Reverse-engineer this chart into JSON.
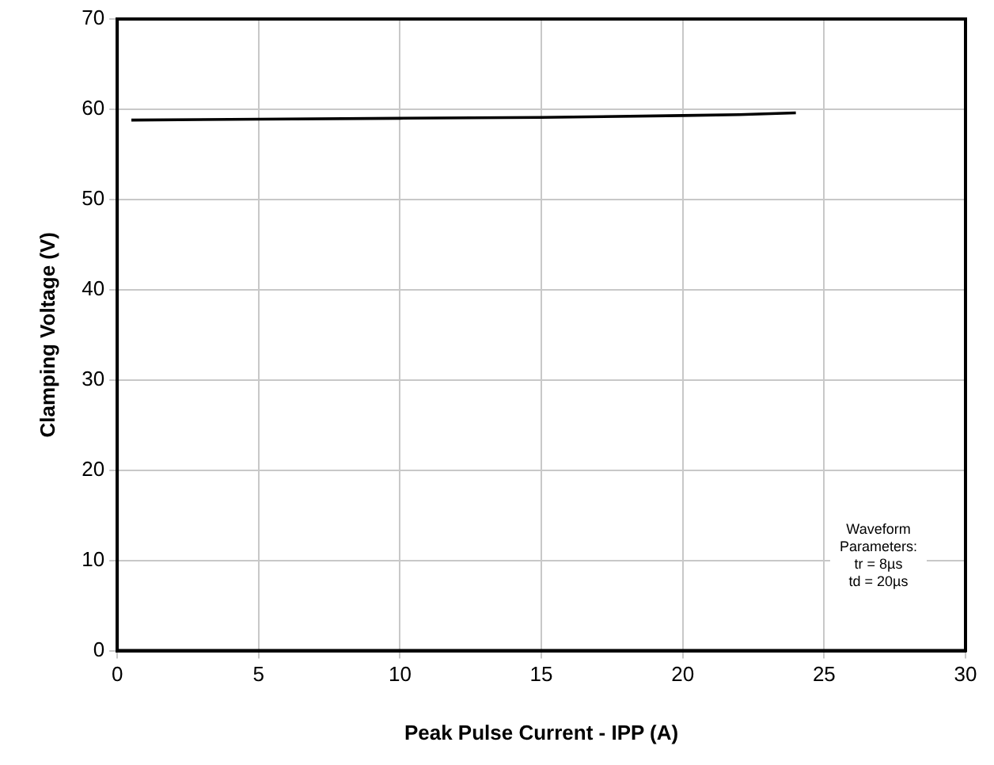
{
  "chart_data": {
    "type": "line",
    "xlabel": "Peak Pulse Current - IPP (A)",
    "ylabel": "Clamping Voltage (V)",
    "series": [
      {
        "x": [
          0.5,
          5,
          10,
          15,
          20,
          22,
          24
        ],
        "values": [
          58.8,
          58.9,
          59.0,
          59.1,
          59.3,
          59.4,
          59.6
        ],
        "color": "#000000"
      }
    ],
    "xlim": [
      0,
      30
    ],
    "xticks": [
      0,
      5,
      10,
      15,
      20,
      25,
      30
    ],
    "ylim": [
      0,
      70
    ],
    "yticks": [
      0,
      10,
      20,
      30,
      40,
      50,
      60,
      70
    ],
    "grid": true,
    "legend": false,
    "marker": "none",
    "line_style": "solid",
    "annotations": [
      "Waveform\nParameters:\ntr = 8µs\ntd = 20µs"
    ]
  }
}
